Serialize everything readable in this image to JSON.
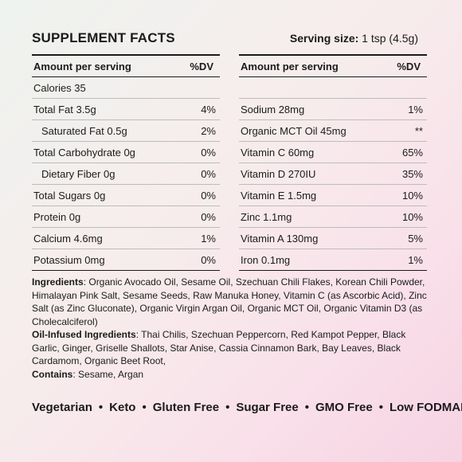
{
  "title": "SUPPLEMENT FACTS",
  "serving": {
    "label": "Serving size:",
    "value": " 1 tsp (4.5g)"
  },
  "left_table": {
    "header_amount": "Amount per serving",
    "header_dv": "%DV",
    "rows": [
      {
        "name": "Calories 35",
        "dv": "",
        "indent": false
      },
      {
        "name": "Total Fat 3.5g",
        "dv": "4%",
        "indent": false
      },
      {
        "name": "Saturated Fat 0.5g",
        "dv": "2%",
        "indent": true
      },
      {
        "name": "Total Carbohydrate 0g",
        "dv": "0%",
        "indent": false
      },
      {
        "name": "Dietary Fiber 0g",
        "dv": "0%",
        "indent": true
      },
      {
        "name": "Total Sugars 0g",
        "dv": "0%",
        "indent": false
      },
      {
        "name": "Protein 0g",
        "dv": "0%",
        "indent": false
      },
      {
        "name": "Calcium 4.6mg",
        "dv": "1%",
        "indent": false
      },
      {
        "name": "Potassium 0mg",
        "dv": "0%",
        "indent": false
      }
    ]
  },
  "right_table": {
    "header_amount": "Amount per serving",
    "header_dv": "%DV",
    "rows": [
      {
        "name": "",
        "dv": "",
        "indent": false
      },
      {
        "name": "Sodium 28mg",
        "dv": "1%",
        "indent": false
      },
      {
        "name": "Organic MCT Oil 45mg",
        "dv": "**",
        "indent": false
      },
      {
        "name": "Vitamin C 60mg",
        "dv": "65%",
        "indent": false
      },
      {
        "name": "Vitamin D 270IU",
        "dv": "35%",
        "indent": false
      },
      {
        "name": "Vitamin E 1.5mg",
        "dv": "10%",
        "indent": false
      },
      {
        "name": "Zinc 1.1mg",
        "dv": "10%",
        "indent": false
      },
      {
        "name": "Vitamin A 130mg",
        "dv": "5%",
        "indent": false
      },
      {
        "name": "Iron 0.1mg",
        "dv": "1%",
        "indent": false
      }
    ]
  },
  "ingredients": {
    "label": "Ingredients",
    "text": ": Organic Avocado Oil, Sesame Oil, Szechuan Chili Flakes, Korean Chili Powder, Himalayan Pink Salt, Sesame Seeds, Raw Manuka Honey, Vitamin C (as Ascorbic Acid), Zinc Salt (as Zinc Gluconate), Organic Virgin Argan Oil, Organic MCT Oil, Organic Vitamin D3 (as Cholecalciferol)"
  },
  "oil_infused": {
    "label": "Oil-Infused Ingredients",
    "text": ": Thai Chilis, Szechuan Peppercorn, Red Kampot Pepper, Black Garlic, Ginger, Griselle Shallots, Star Anise, Cassia Cinnamon Bark, Bay Leaves, Black Cardamom, Organic Beet Root,"
  },
  "contains": {
    "label": "Contains",
    "text": ": Sesame, Argan"
  },
  "claims": [
    "Vegetarian",
    "Keto",
    "Gluten Free",
    "Sugar Free",
    "GMO Free",
    "Low FODMAP"
  ],
  "separator": "•"
}
